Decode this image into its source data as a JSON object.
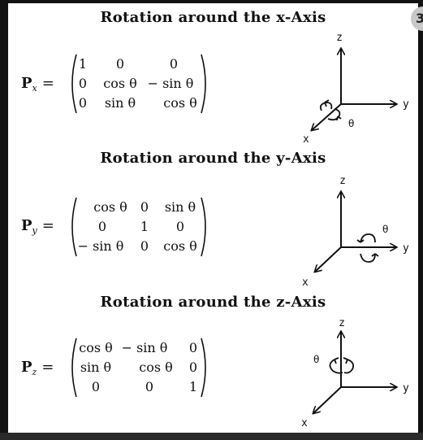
{
  "sections": [
    {
      "title": "Rotation around the x-Axis",
      "matrix_name": "P",
      "matrix_subscript": "x",
      "equals": "=",
      "rows": [
        [
          "1",
          "0",
          "0"
        ],
        [
          "0",
          "cos θ",
          "− sin θ"
        ],
        [
          "0",
          "sin θ",
          "cos θ"
        ]
      ],
      "axes": {
        "x": "x",
        "y": "y",
        "z": "z"
      },
      "angle_label": "θ",
      "rotation_axis": "x"
    },
    {
      "title": "Rotation around the y-Axis",
      "matrix_name": "P",
      "matrix_subscript": "y",
      "equals": "=",
      "rows": [
        [
          "cos θ",
          "0",
          "sin θ"
        ],
        [
          "0",
          "1",
          "0"
        ],
        [
          "− sin θ",
          "0",
          "cos θ"
        ]
      ],
      "axes": {
        "x": "x",
        "y": "y",
        "z": "z"
      },
      "angle_label": "θ",
      "rotation_axis": "y"
    },
    {
      "title": "Rotation around the z-Axis",
      "matrix_name": "P",
      "matrix_subscript": "z",
      "equals": "=",
      "rows": [
        [
          "cos θ",
          "− sin θ",
          "0"
        ],
        [
          "sin θ",
          "cos θ",
          "0"
        ],
        [
          "0",
          "0",
          "1"
        ]
      ],
      "axes": {
        "x": "x",
        "y": "y",
        "z": "z"
      },
      "angle_label": "θ",
      "rotation_axis": "z"
    }
  ]
}
